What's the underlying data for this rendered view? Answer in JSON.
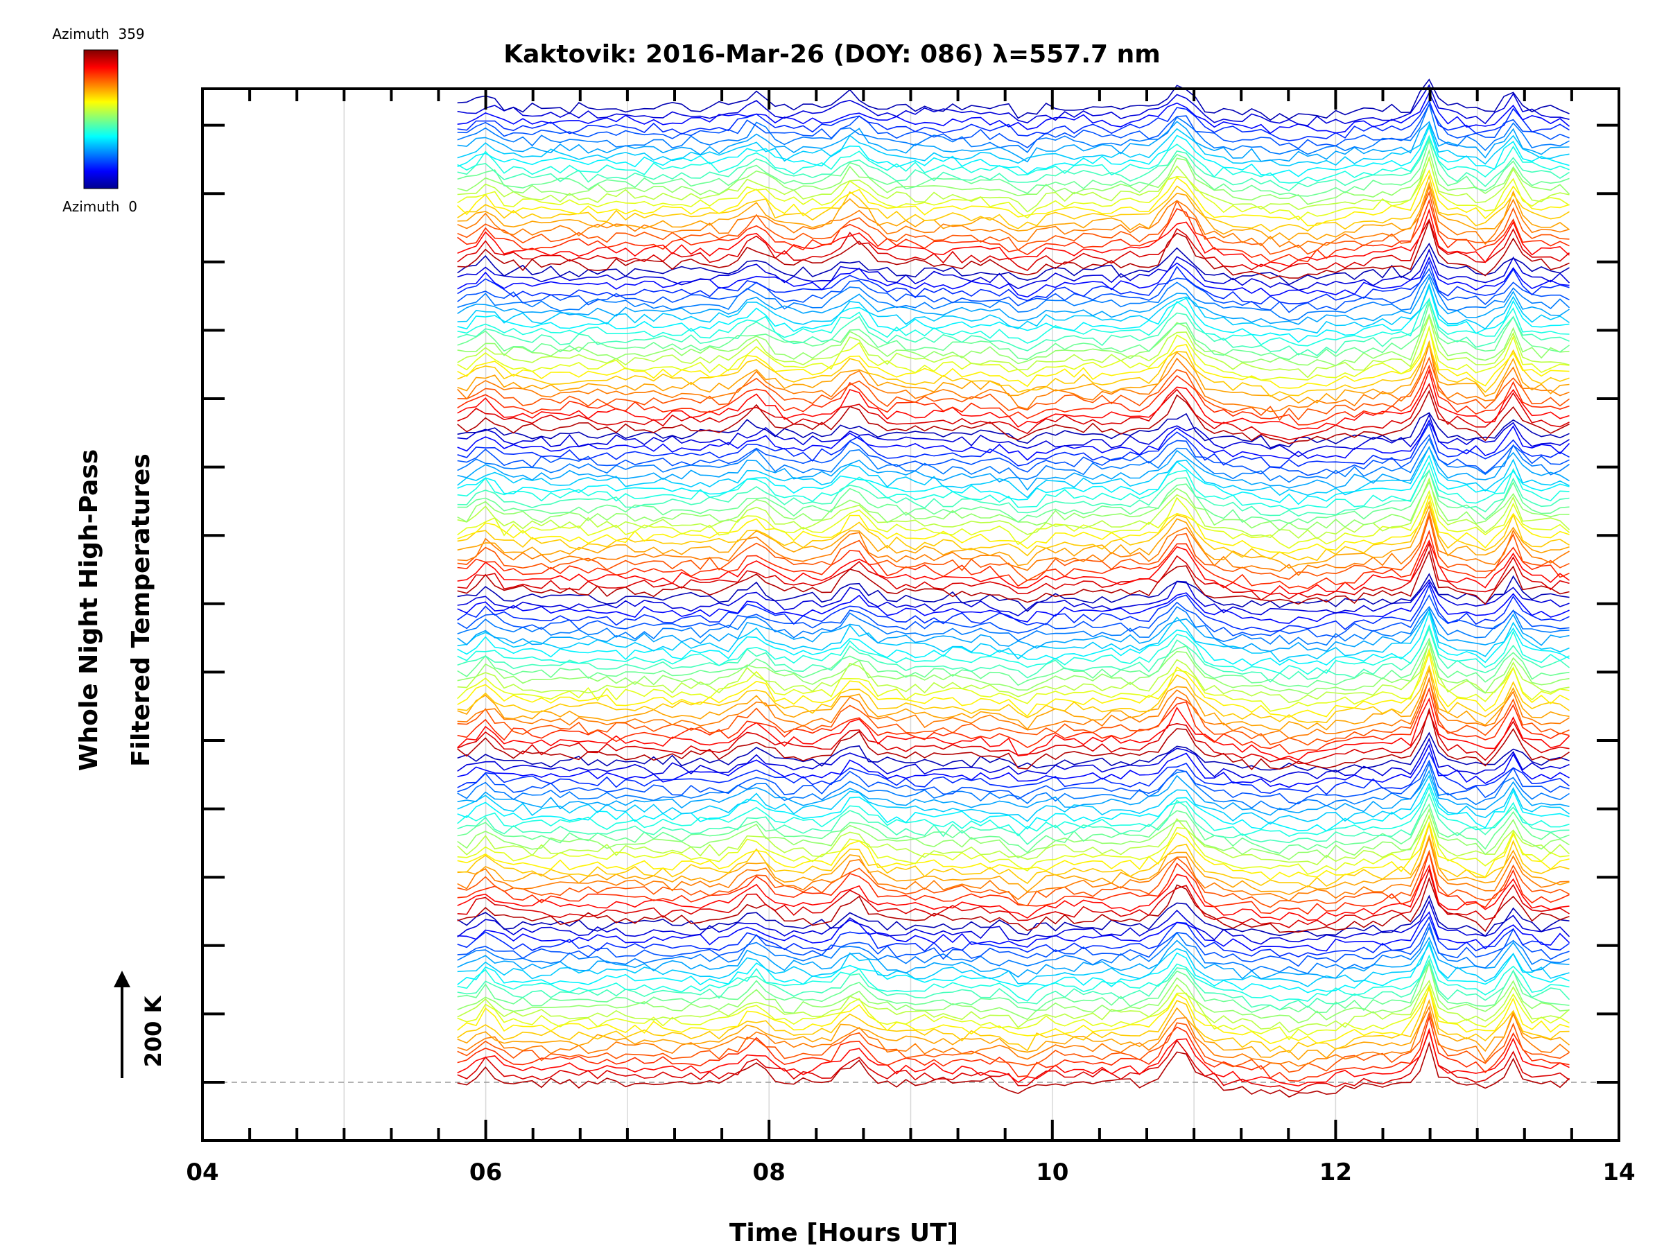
{
  "chart_data": {
    "type": "line",
    "title": "Kaktovik: 2016-Mar-26 (DOY: 086) λ=557.7 nm",
    "xlabel": "Time [Hours UT]",
    "ylabel_line1": "Whole Night High-Pass",
    "ylabel_line2": "Filtered Temperatures",
    "xlim": [
      4,
      14
    ],
    "x_tick_labels": [
      "04",
      "06",
      "08",
      "10",
      "12",
      "14"
    ],
    "x_tick_values": [
      4,
      6,
      8,
      10,
      12,
      14
    ],
    "data_start_hour": 5.8,
    "data_end_hour": 13.65,
    "y_scale_label": "200 K",
    "y_scale_kelvin": 200,
    "n_traces": 144,
    "azimuth_min": 0,
    "azimuth_max": 359,
    "colorbar": {
      "top_label": "Azimuth  359",
      "bottom_label": "Azimuth  0"
    },
    "common_features_hours": [
      6.0,
      7.9,
      8.6,
      10.9,
      12.65,
      13.25
    ]
  }
}
